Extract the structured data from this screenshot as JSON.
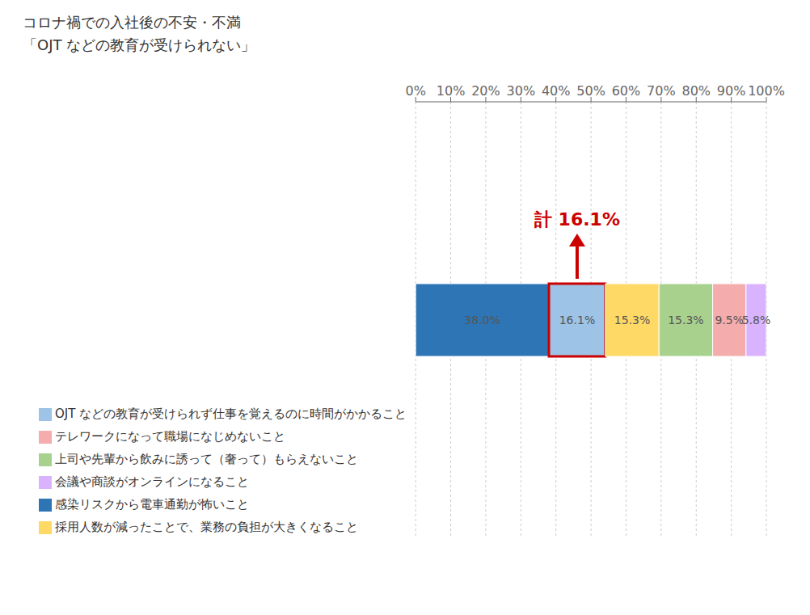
{
  "chart_data": {
    "type": "bar",
    "orientation": "horizontal",
    "stacked": true,
    "title": "コロナ禍での入社後の不安・不満",
    "subtitle": "「OJT などの教育が受けられない」",
    "categories": [
      null
    ],
    "series": [
      {
        "name": "感染リスクから電車通勤が怖いこと",
        "color": "#2E75B6",
        "values": [
          38.0
        ],
        "value_labels": [
          "38.0%"
        ]
      },
      {
        "name": "OJT などの教育が受けられず仕事を覚えるのに時間がかかること",
        "color": "#9DC3E6",
        "values": [
          16.1
        ],
        "value_labels": [
          "16.1%"
        ]
      },
      {
        "name": "採用人数が減ったことで、業務の負担が大きくなること",
        "color": "#FFD966",
        "values": [
          15.3
        ],
        "value_labels": [
          "15.3%"
        ]
      },
      {
        "name": "上司や先輩から飲みに誘って（奢って）もらえないこと",
        "color": "#A9D18E",
        "values": [
          15.3
        ],
        "value_labels": [
          "15.3%"
        ]
      },
      {
        "name": "テレワークになって職場になじめないこと",
        "color": "#F4ACAC",
        "values": [
          9.5
        ],
        "value_labels": [
          "9.5%"
        ]
      },
      {
        "name": "会議や商談がオンラインになること",
        "color": "#D9B3FF",
        "values": [
          5.8
        ],
        "value_labels": [
          "5.8%"
        ]
      }
    ],
    "data_labels": true,
    "xlim": [
      0,
      100
    ],
    "xticks": [
      {
        "value": 0,
        "label": "0%"
      },
      {
        "value": 10,
        "label": "10%"
      },
      {
        "value": 20,
        "label": "20%"
      },
      {
        "value": 30,
        "label": "30%"
      },
      {
        "value": 40,
        "label": "40%"
      },
      {
        "value": 50,
        "label": "50%"
      },
      {
        "value": 60,
        "label": "60%"
      },
      {
        "value": 70,
        "label": "70%"
      },
      {
        "value": 80,
        "label": "80%"
      },
      {
        "value": 90,
        "label": "90%"
      },
      {
        "value": 100,
        "label": "100%"
      }
    ],
    "grid": true,
    "legend": "bottom",
    "tick_labels": "x",
    "annotations": [
      {
        "text": "計 16.1%",
        "series": "OJT などの教育が受けられず仕事を覚えるのに時間がかかること",
        "color": "#CC0000"
      }
    ]
  }
}
